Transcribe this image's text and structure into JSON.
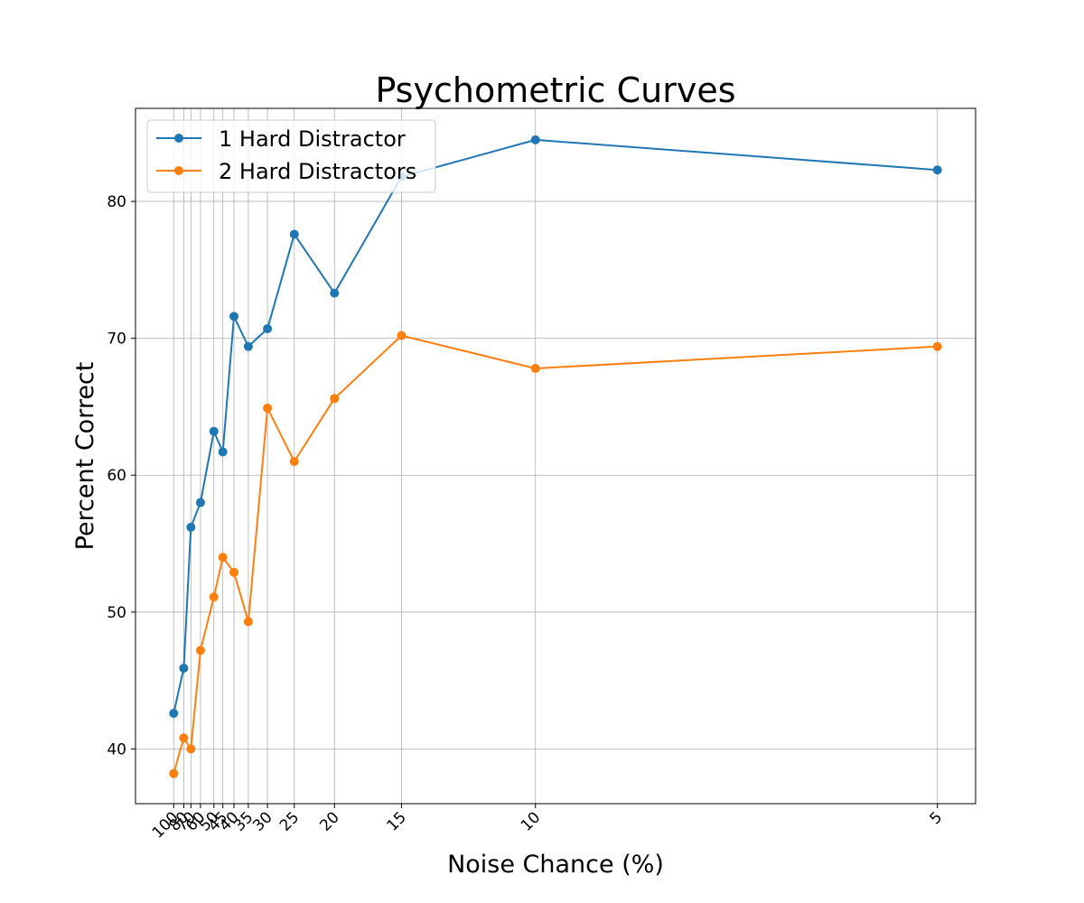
{
  "chart_data": {
    "type": "line",
    "title": "Psychometric Curves",
    "xlabel": "Noise Chance (%)",
    "ylabel": "Percent Correct",
    "x": [
      100,
      80,
      70,
      60,
      50,
      45,
      40,
      35,
      30,
      25,
      20,
      15,
      10,
      5
    ],
    "x_tick_labels": [
      "100",
      "80",
      "70",
      "60",
      "50",
      "45",
      "40",
      "35",
      "30",
      "25",
      "20",
      "15",
      "10",
      "5"
    ],
    "x_axis": "reciprocal (1/x), reversed",
    "x_tick_rotation": 45,
    "y_ticks": [
      40,
      50,
      60,
      70,
      80
    ],
    "ylim": [
      36,
      86.8
    ],
    "grid": true,
    "legend_position": "upper left",
    "series": [
      {
        "name": "1 Hard Distractor",
        "color": "#1f77b4",
        "values": [
          42.6,
          45.9,
          56.2,
          58.0,
          63.2,
          61.7,
          71.6,
          69.4,
          70.7,
          77.6,
          73.3,
          81.8,
          84.5,
          82.3
        ]
      },
      {
        "name": "2 Hard Distractors",
        "color": "#ff7f0e",
        "values": [
          38.2,
          40.8,
          40.0,
          47.2,
          51.1,
          54.0,
          52.9,
          49.3,
          64.9,
          61.0,
          65.6,
          70.2,
          67.8,
          69.4
        ]
      }
    ]
  }
}
